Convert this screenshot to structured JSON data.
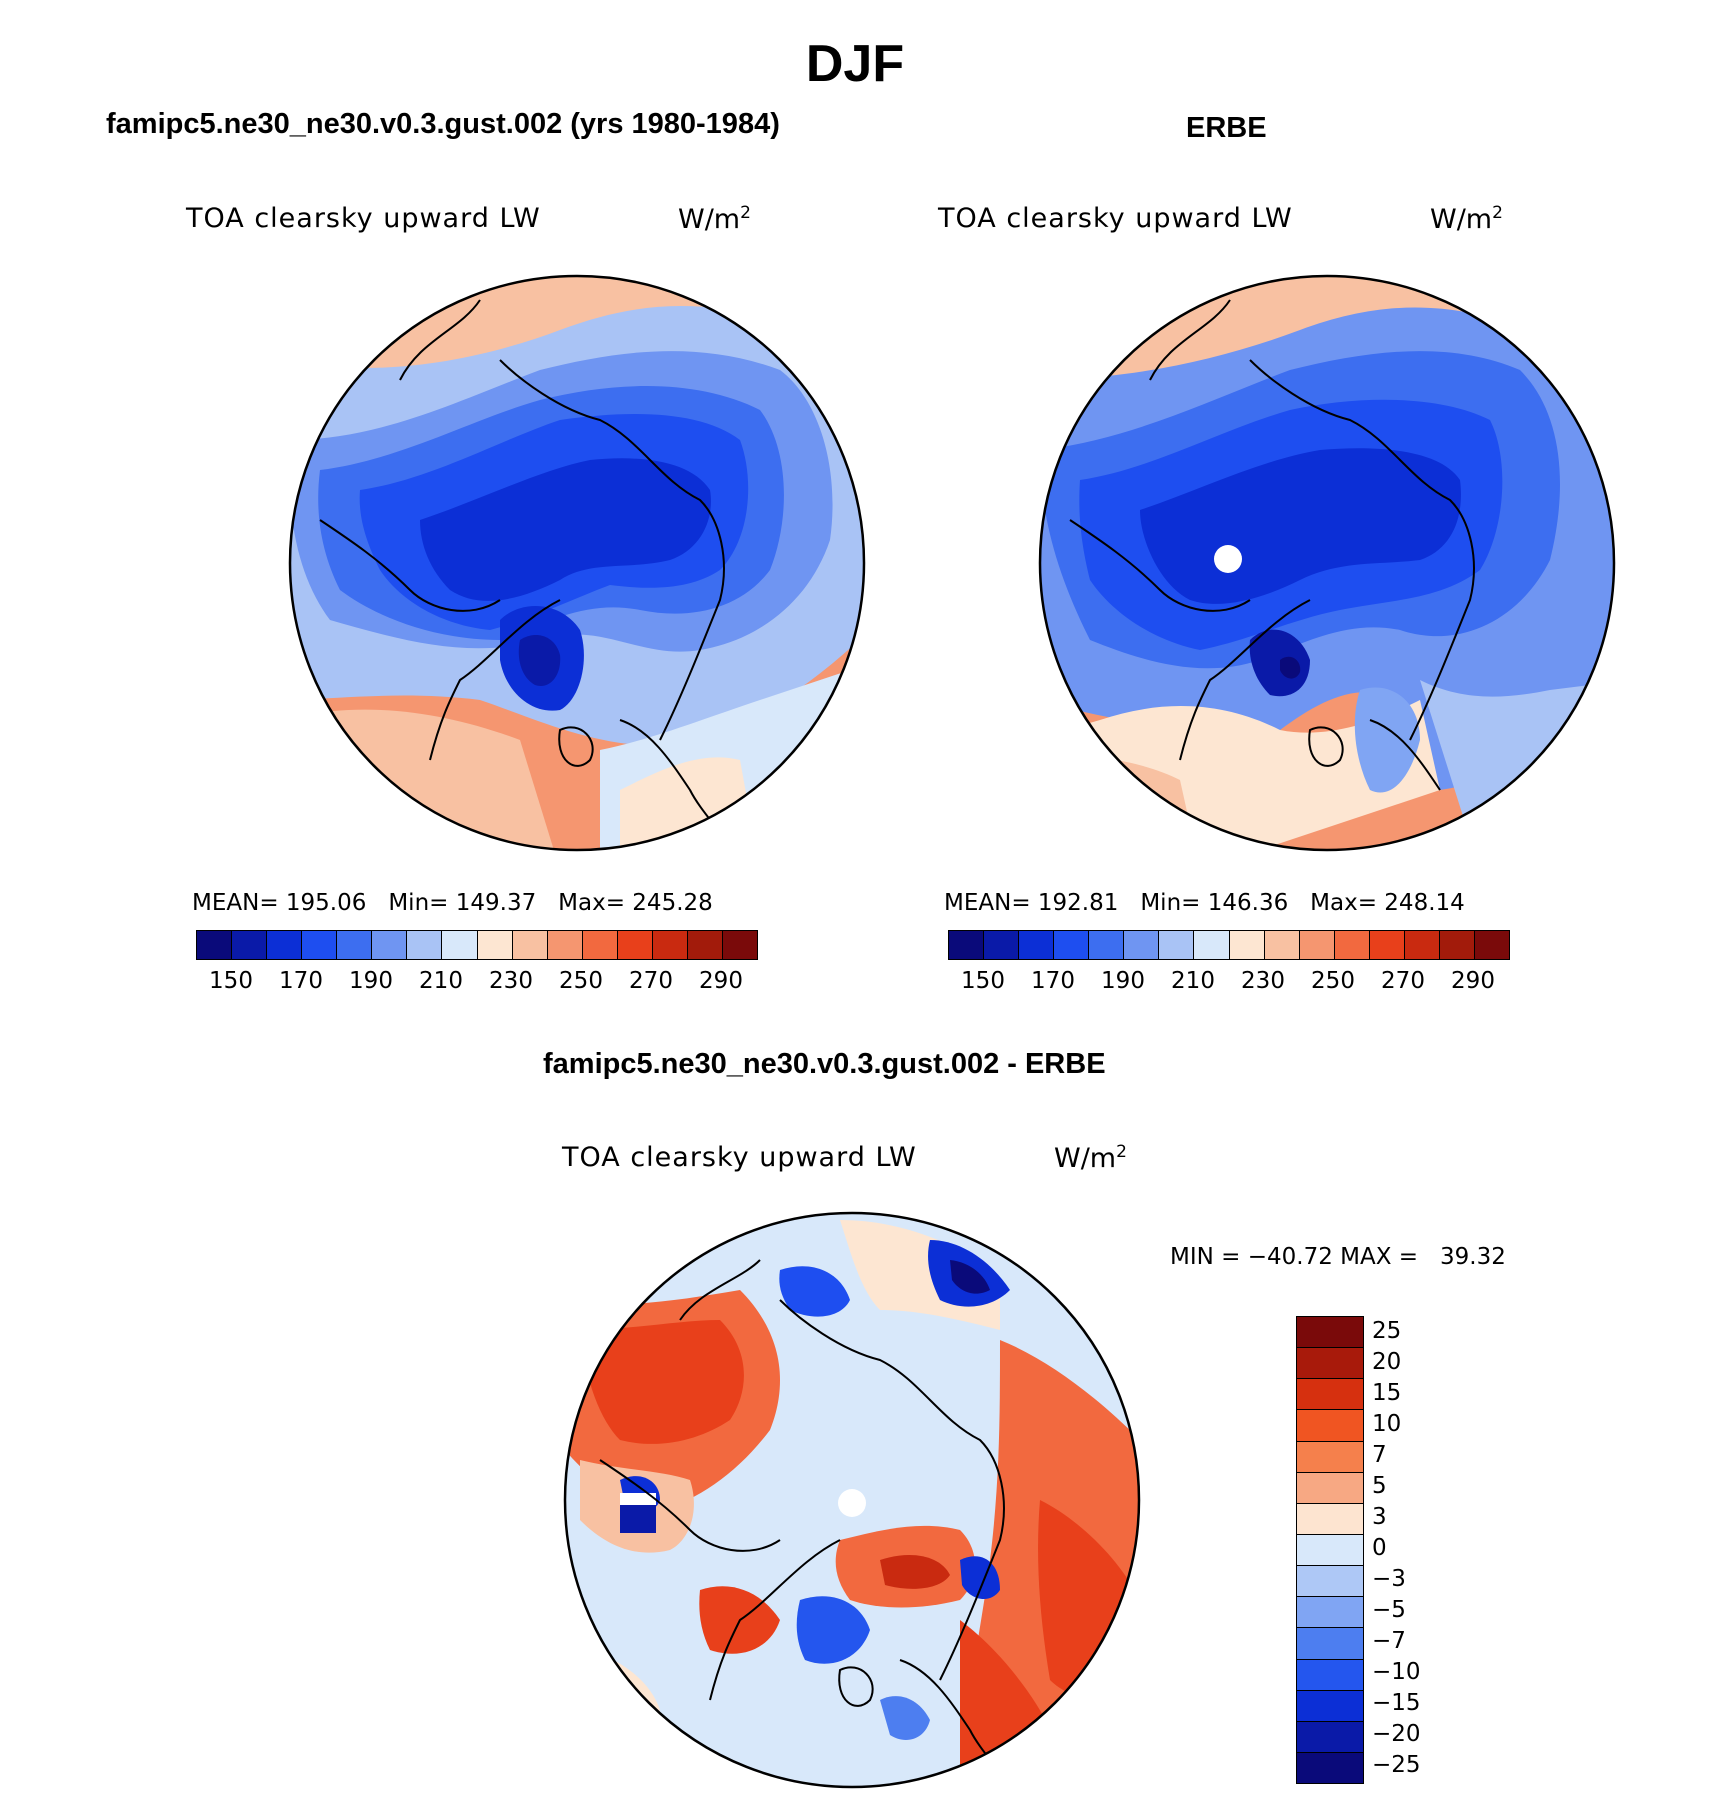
{
  "title": "DJF",
  "panels": [
    {
      "id": "model",
      "title": "famipc5.ne30_ne30.v0.3.gust.002 (yrs 1980-1984)",
      "variable": "TOA clearsky upward LW",
      "units": "W/m",
      "units_sup": "2",
      "stats": {
        "mean_label": "MEAN=",
        "mean": "195.06",
        "min_label": "Min=",
        "min": "149.37",
        "max_label": "Max=",
        "max": "245.28"
      }
    },
    {
      "id": "obs",
      "title": "ERBE",
      "variable": "TOA clearsky upward LW",
      "units": "W/m",
      "units_sup": "2",
      "stats": {
        "mean_label": "MEAN=",
        "mean": "192.81",
        "min_label": "Min=",
        "min": "146.36",
        "max_label": "Max=",
        "max": "248.14"
      }
    },
    {
      "id": "diff",
      "title": "famipc5.ne30_ne30.v0.3.gust.002 - ERBE",
      "variable": "TOA clearsky upward LW",
      "units": "W/m",
      "units_sup": "2",
      "minmax": "MIN = −40.72 MAX =   39.32"
    }
  ],
  "abs_colorbar": {
    "colors": [
      "#0a0a7a",
      "#0a1aa8",
      "#0c2fd6",
      "#1e4ef0",
      "#3d6ef0",
      "#6f95f2",
      "#a9c3f5",
      "#d8e8fa",
      "#fde6d2",
      "#f8c1a2",
      "#f59670",
      "#f2693f",
      "#e8401b",
      "#c92a10",
      "#a21b0b",
      "#7a0a0a"
    ],
    "labels": [
      "150",
      "170",
      "190",
      "210",
      "230",
      "250",
      "270",
      "290"
    ]
  },
  "diff_colorbar": {
    "colors": [
      "#7a0a0a",
      "#a81a0b",
      "#d6300f",
      "#f05522",
      "#f5804c",
      "#f7a883",
      "#fde4d0",
      "#d8e8fa",
      "#aec8f6",
      "#80a5f3",
      "#4d7ef0",
      "#2456ee",
      "#0c2fd6",
      "#0a1aa8",
      "#0a0a7a"
    ],
    "labels": [
      "25",
      "20",
      "15",
      "10",
      "7",
      "5",
      "3",
      "0",
      "−3",
      "−5",
      "−7",
      "−10",
      "−15",
      "−20",
      "−25"
    ]
  }
}
